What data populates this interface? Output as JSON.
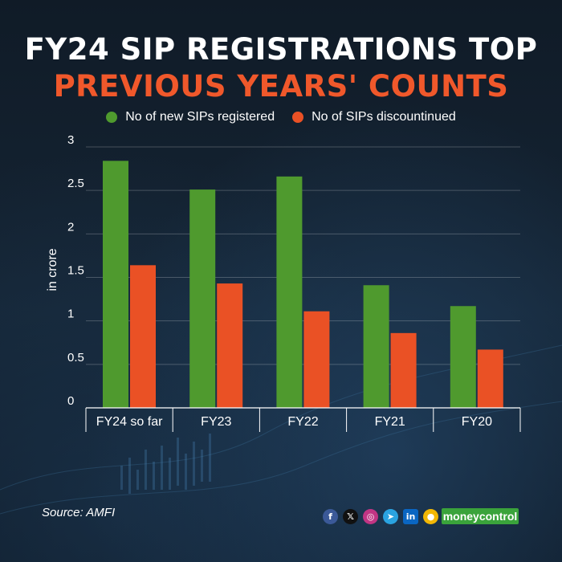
{
  "header": {
    "title_line1": "FY24 SIP REGISTRATIONS TOP",
    "title_line2": "PREVIOUS YEARS' COUNTS"
  },
  "colors": {
    "new_sips": "#4f9a2e",
    "discontinued": "#ea5125",
    "title_accent": "#f0582b"
  },
  "chart_data": {
    "type": "bar",
    "categories": [
      "FY24 so far",
      "FY23",
      "FY22",
      "FY21",
      "FY20"
    ],
    "series": [
      {
        "name": "No of new SIPs registered",
        "values": [
          2.84,
          2.51,
          2.66,
          1.41,
          1.17
        ]
      },
      {
        "name": "No of SIPs discountinued",
        "values": [
          1.64,
          1.43,
          1.11,
          0.86,
          0.67
        ]
      }
    ],
    "ylabel": "in crore",
    "ylim": [
      0,
      3
    ],
    "yticks": [
      "0",
      "0.5",
      "1",
      "1.5",
      "2",
      "2.5",
      "3"
    ],
    "grid": true,
    "legend": "top"
  },
  "footer": {
    "source": "Source: AMFI",
    "brand": "moneycontrol",
    "social_icons": [
      "facebook-icon",
      "x-icon",
      "instagram-icon",
      "telegram-icon",
      "linkedin-icon",
      "koo-icon"
    ]
  }
}
